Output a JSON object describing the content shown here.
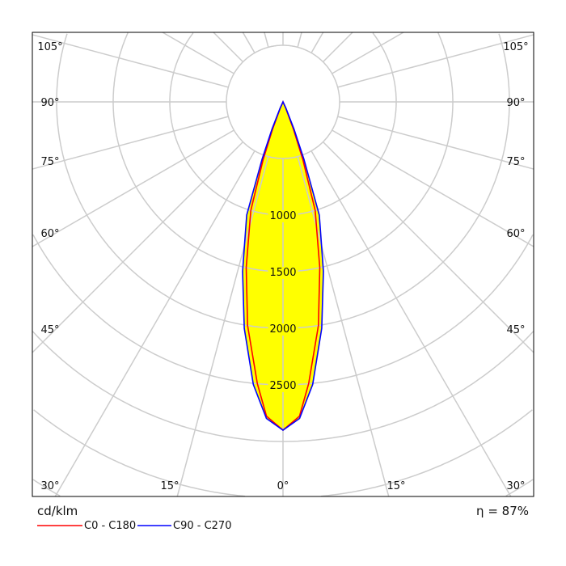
{
  "chart_data": {
    "type": "polar",
    "unit_label": "cd/klm",
    "efficiency_label": "η = 87%",
    "radial_ticks": [
      1000,
      1500,
      2000,
      2500
    ],
    "radial_circles": [
      500,
      1000,
      1500,
      2000,
      2500,
      3000,
      3500,
      4000
    ],
    "angle_labels_left": [
      "105°",
      "90°",
      "75°",
      "60°",
      "45°",
      "30°",
      "15°"
    ],
    "angle_labels_right": [
      "105°",
      "90°",
      "75°",
      "60°",
      "45°",
      "30°",
      "15°"
    ],
    "angle_label_zero": "0°",
    "grid": true,
    "legend_placement": "bottom-left",
    "fill_color": "#ffff00",
    "grid_color": "#cccccc",
    "series": [
      {
        "name": "C0 - C180",
        "color": "#ff0000",
        "points": [
          [
            0,
            2900
          ],
          [
            3,
            2780
          ],
          [
            5.2,
            2500
          ],
          [
            9,
            2000
          ],
          [
            12.5,
            1500
          ],
          [
            16.5,
            1000
          ],
          [
            19,
            540
          ],
          [
            21,
            260
          ],
          [
            24,
            60
          ],
          [
            26,
            0
          ]
        ]
      },
      {
        "name": "C90 - C270",
        "color": "#0000ff",
        "points": [
          [
            0,
            2900
          ],
          [
            3,
            2800
          ],
          [
            6,
            2510
          ],
          [
            9.7,
            2030
          ],
          [
            13.4,
            1540
          ],
          [
            17.8,
            1050
          ],
          [
            20,
            540
          ],
          [
            22,
            260
          ],
          [
            25,
            60
          ],
          [
            27,
            0
          ]
        ]
      }
    ]
  }
}
